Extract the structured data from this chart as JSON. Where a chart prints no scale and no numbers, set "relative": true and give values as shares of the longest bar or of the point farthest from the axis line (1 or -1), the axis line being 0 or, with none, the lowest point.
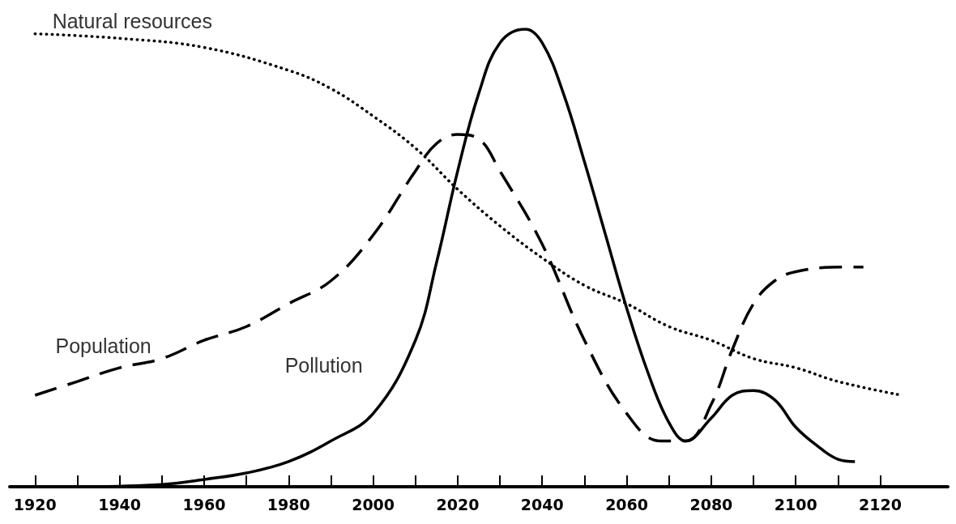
{
  "chart_data": {
    "type": "line",
    "relative": true,
    "marker": "none",
    "legend": false,
    "grid": false,
    "xlim": [
      1914,
      2136
    ],
    "xticks": [
      1920,
      {
        "value": 1930,
        "label": null
      },
      1940,
      {
        "value": 1950,
        "label": null
      },
      1960,
      {
        "value": 1970,
        "label": null
      },
      1980,
      {
        "value": 1990,
        "label": null
      },
      2000,
      {
        "value": 2010,
        "label": null
      },
      2020,
      {
        "value": 2030,
        "label": null
      },
      2040,
      {
        "value": 2050,
        "label": null
      },
      2060,
      {
        "value": 2070,
        "label": null
      },
      2080,
      {
        "value": 2090,
        "label": null
      },
      2100,
      {
        "value": 2110,
        "label": null
      },
      2120
    ],
    "series": [
      {
        "name": "Natural resources",
        "color": "#000000",
        "line_style": "dotted",
        "x": [
          1920,
          1940,
          1960,
          1980,
          1990,
          2000,
          2010,
          2020,
          2030,
          2040,
          2050,
          2060,
          2070,
          2080,
          2090,
          2100,
          2110,
          2125
        ],
        "values": [
          0.99,
          0.98,
          0.96,
          0.91,
          0.87,
          0.81,
          0.74,
          0.65,
          0.57,
          0.5,
          0.44,
          0.4,
          0.35,
          0.32,
          0.28,
          0.26,
          0.23,
          0.2
        ]
      },
      {
        "name": "Population",
        "color": "#000000",
        "line_style": "dashed",
        "x": [
          1920,
          1930,
          1940,
          1950,
          1960,
          1970,
          1980,
          1990,
          2000,
          2010,
          2015,
          2020,
          2025,
          2030,
          2040,
          2050,
          2060,
          2068,
          2074,
          2080,
          2085,
          2090,
          2095,
          2100,
          2110,
          2116
        ],
        "values": [
          0.2,
          0.23,
          0.26,
          0.28,
          0.32,
          0.35,
          0.4,
          0.45,
          0.55,
          0.69,
          0.75,
          0.77,
          0.76,
          0.69,
          0.53,
          0.32,
          0.16,
          0.1,
          0.1,
          0.18,
          0.3,
          0.4,
          0.45,
          0.47,
          0.48,
          0.48
        ]
      },
      {
        "name": "Pollution",
        "color": "#000000",
        "line_style": "solid",
        "x": [
          1932,
          1950,
          1960,
          1970,
          1980,
          1990,
          2000,
          2010,
          2015,
          2020,
          2025,
          2030,
          2036,
          2040,
          2045,
          2050,
          2055,
          2060,
          2065,
          2070,
          2074,
          2080,
          2085,
          2090,
          2095,
          2100,
          2105,
          2110,
          2114
        ],
        "values": [
          0,
          0.005,
          0.016,
          0.03,
          0.055,
          0.1,
          0.16,
          0.32,
          0.49,
          0.69,
          0.86,
          0.97,
          1,
          0.97,
          0.86,
          0.71,
          0.55,
          0.39,
          0.25,
          0.14,
          0.1,
          0.15,
          0.2,
          0.21,
          0.19,
          0.13,
          0.09,
          0.06,
          0.055
        ]
      }
    ]
  }
}
